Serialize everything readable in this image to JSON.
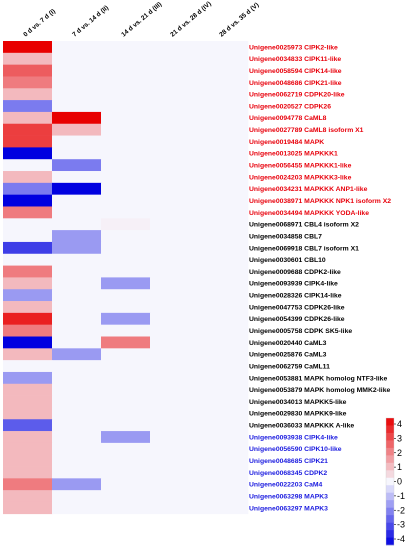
{
  "chart_data": {
    "type": "heatmap",
    "title": "",
    "columns": [
      "0 d vs. 7 d (I)",
      "7 d vs. 14 d (II)",
      "14 d vs. 21 d (III)",
      "21 d vs. 28 d (IV)",
      "28 d vs. 35 d (V)"
    ],
    "rows": [
      {
        "label": "Unigene0025973 CIPK2-like",
        "group": "red",
        "values": [
          4,
          0,
          0,
          0,
          0
        ]
      },
      {
        "label": "Unigene0034833 CIPK11-like",
        "group": "red",
        "values": [
          1,
          0,
          0,
          0,
          0
        ]
      },
      {
        "label": "Unigene0058594 CIPK14-like",
        "group": "red",
        "values": [
          2.5,
          0,
          0,
          0,
          0
        ]
      },
      {
        "label": "Unigene0048686 CIPK21-like",
        "group": "red",
        "values": [
          2,
          0,
          0,
          0,
          0
        ]
      },
      {
        "label": "Unigene0062719 CDPK20-like",
        "group": "red",
        "values": [
          1,
          0,
          0,
          0,
          0
        ]
      },
      {
        "label": "Unigene0020527 CDPK26",
        "group": "red",
        "values": [
          -2,
          0,
          0,
          0,
          0
        ]
      },
      {
        "label": "Unigene0094778 CaML8",
        "group": "red",
        "values": [
          1,
          4,
          0,
          0,
          0
        ]
      },
      {
        "label": "Unigene0027789 CaML8 isoform X1",
        "group": "red",
        "values": [
          3,
          1,
          0,
          0,
          0
        ]
      },
      {
        "label": "Unigene0019484 MAPK",
        "group": "red",
        "values": [
          3,
          0,
          0,
          0,
          0
        ]
      },
      {
        "label": "Unigene0013025 MAPKKK1",
        "group": "red",
        "values": [
          -4,
          0,
          0,
          0,
          0
        ]
      },
      {
        "label": "Unigene0056455 MAPKKK1-like",
        "group": "red",
        "values": [
          0,
          -2,
          0,
          0,
          0
        ]
      },
      {
        "label": "Unigene0024203 MAPKKK3-like",
        "group": "red",
        "values": [
          1,
          0,
          0,
          0,
          0
        ]
      },
      {
        "label": "Unigene0034231 MAPKKK ANP1-like",
        "group": "red",
        "values": [
          -2,
          -4,
          0,
          0,
          0
        ]
      },
      {
        "label": "Unigene0038971 MAPKKK NPK1 isoform X2",
        "group": "red",
        "values": [
          -4,
          0,
          0,
          0,
          0
        ]
      },
      {
        "label": "Unigene0034494 MAPKKK YODA-like",
        "group": "red",
        "values": [
          2,
          0,
          0,
          0,
          0
        ]
      },
      {
        "label": "Unigene0068971 CBL4 isoform X2",
        "group": "black",
        "values": [
          0,
          0,
          0.1,
          0,
          0
        ]
      },
      {
        "label": "Unigene0034858 CBL7",
        "group": "black",
        "values": [
          0,
          -1.5,
          0,
          0,
          0
        ]
      },
      {
        "label": "Unigene0069918 CBL7 isoform X1",
        "group": "black",
        "values": [
          -3,
          -1.5,
          0,
          0,
          0
        ]
      },
      {
        "label": "Unigene0030601 CBL10",
        "group": "black",
        "values": [
          0,
          0,
          0,
          0,
          0
        ]
      },
      {
        "label": "Unigene0009688 CDPK2-like",
        "group": "black",
        "values": [
          2,
          0,
          0,
          0,
          0
        ]
      },
      {
        "label": "Unigene0093939 CIPK4-like",
        "group": "black",
        "values": [
          1,
          0,
          -1.5,
          0,
          0
        ]
      },
      {
        "label": "Unigene0028326 CIPK14-like",
        "group": "black",
        "values": [
          -1.5,
          0,
          0,
          0,
          0
        ]
      },
      {
        "label": "Unigene0047753 CDPK26-like",
        "group": "black",
        "values": [
          1,
          0,
          0,
          0,
          0
        ]
      },
      {
        "label": "Unigene0054399 CDPK26-like",
        "group": "black",
        "values": [
          3.5,
          0,
          -1.5,
          0,
          0
        ]
      },
      {
        "label": "Unigene0005758 CDPK SK5-like",
        "group": "black",
        "values": [
          2,
          0,
          0,
          0,
          0
        ]
      },
      {
        "label": "Unigene0020440 CaML3",
        "group": "black",
        "values": [
          -4,
          0,
          2,
          0,
          0
        ]
      },
      {
        "label": "Unigene0025876 CaML3",
        "group": "black",
        "values": [
          1,
          -1.5,
          0,
          0,
          0
        ]
      },
      {
        "label": "Unigene0062759 CaML11",
        "group": "black",
        "values": [
          0,
          0,
          0,
          0,
          0
        ]
      },
      {
        "label": "Unigene0053881 MAPK homolog NTF3-like",
        "group": "black",
        "values": [
          -1.5,
          0,
          0,
          0,
          0
        ]
      },
      {
        "label": "Unigene0053879 MAPK homolog MMK2-like",
        "group": "black",
        "values": [
          1,
          0,
          0,
          0,
          0
        ]
      },
      {
        "label": "Unigene0034013 MAPKK5-like",
        "group": "black",
        "values": [
          1,
          0,
          0,
          0,
          0
        ]
      },
      {
        "label": "Unigene0029830 MAPKK9-like",
        "group": "black",
        "values": [
          1,
          0,
          0,
          0,
          0
        ]
      },
      {
        "label": "Unigene0036033 MAPKKK A-like",
        "group": "black",
        "values": [
          -2.5,
          0,
          0,
          0,
          0
        ]
      },
      {
        "label": "Unigene0093938 CIPK4-like",
        "group": "blue",
        "values": [
          1,
          0,
          -1.5,
          0,
          0
        ]
      },
      {
        "label": "Unigene0056590 CIPK10-like",
        "group": "blue",
        "values": [
          1,
          0,
          0,
          0,
          0
        ]
      },
      {
        "label": "Unigene0048685 CIPK21",
        "group": "blue",
        "values": [
          1,
          0,
          0,
          0,
          0
        ]
      },
      {
        "label": "Unigene0068345 CDPK2",
        "group": "blue",
        "values": [
          1,
          0,
          0,
          0,
          0
        ]
      },
      {
        "label": "Unigene0022203 CaM4",
        "group": "blue",
        "values": [
          2,
          -1.5,
          0,
          0,
          0
        ]
      },
      {
        "label": "Unigene0063298 MAPK3",
        "group": "blue",
        "values": [
          1,
          0,
          0,
          0,
          0
        ]
      },
      {
        "label": "Unigene0063297 MAPK3",
        "group": "blue",
        "values": [
          1,
          0,
          0,
          0,
          0
        ]
      }
    ],
    "color_scale": {
      "min": -4,
      "max": 4,
      "low_color": "#0000e0",
      "mid_color": "#f6f6fd",
      "high_color": "#e80000"
    },
    "legend": {
      "ticks": [
        4,
        3,
        2,
        1,
        0,
        -1,
        -2,
        -3,
        -4
      ],
      "position": "bottom-right"
    },
    "label_colors": {
      "red": "#e8000b",
      "black": "#000000",
      "blue": "#1a1adf"
    }
  }
}
